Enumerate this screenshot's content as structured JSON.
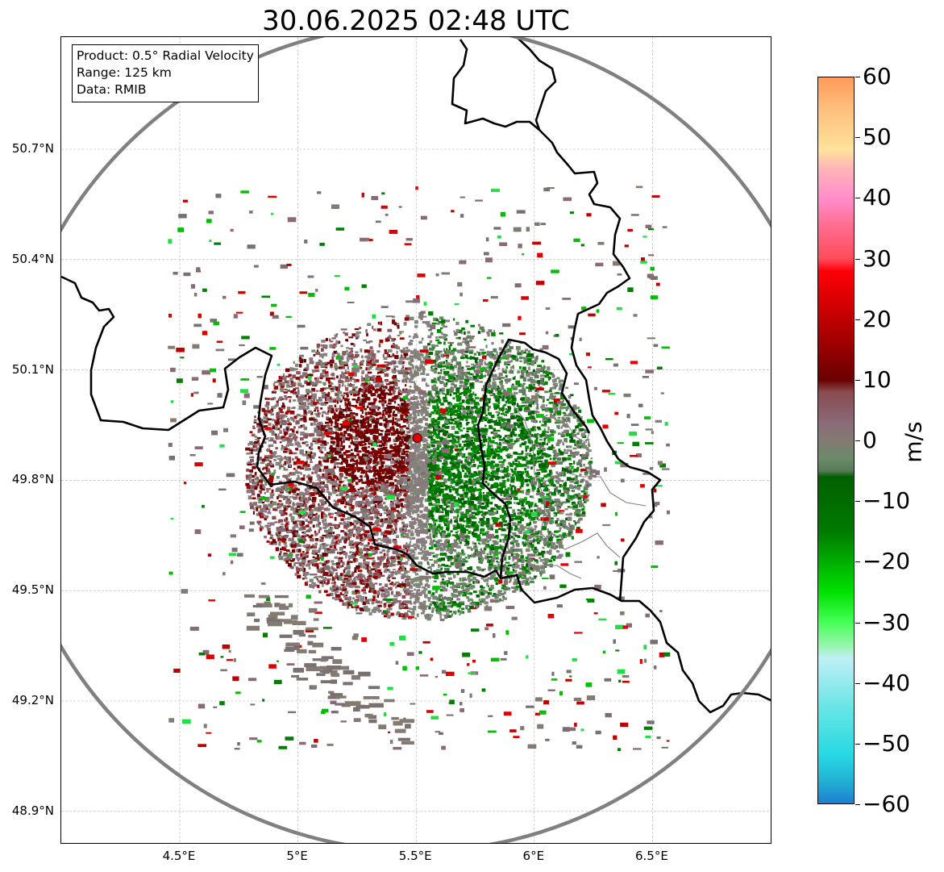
{
  "title": "30.06.2025 02:48 UTC",
  "info": {
    "product": "Product: 0.5° Radial Velocity",
    "range": "Range: 125 km",
    "data": "Data: RMIB"
  },
  "map": {
    "lon_range": [
      4.0,
      7.0
    ],
    "lat_range": [
      48.8,
      50.99
    ],
    "radar_site": {
      "lon": 5.505,
      "lat": 49.915
    },
    "range_km": 125,
    "lat_ticks": [
      {
        "value": 50.7,
        "label": "50.7°N"
      },
      {
        "value": 50.4,
        "label": "50.4°N"
      },
      {
        "value": 50.1,
        "label": "50.1°N"
      },
      {
        "value": 49.8,
        "label": "49.8°N"
      },
      {
        "value": 49.5,
        "label": "49.5°N"
      },
      {
        "value": 49.2,
        "label": "49.2°N"
      },
      {
        "value": 48.9,
        "label": "48.9°N"
      }
    ],
    "lon_ticks": [
      {
        "value": 4.5,
        "label": "4.5°E"
      },
      {
        "value": 5.0,
        "label": "5°E"
      },
      {
        "value": 5.5,
        "label": "5.5°E"
      },
      {
        "value": 6.0,
        "label": "6°E"
      },
      {
        "value": 6.5,
        "label": "6.5°E"
      }
    ],
    "colors": {
      "grid": "#b0b0b0",
      "range_ring": "#808080",
      "border": "#000000",
      "admin_border": "#808080",
      "site_marker": "#e00000"
    }
  },
  "colorbar": {
    "unit": "m/s",
    "min": -60,
    "max": 60,
    "ticks": [
      {
        "value": 60,
        "label": "60"
      },
      {
        "value": 50,
        "label": "50"
      },
      {
        "value": 40,
        "label": "40"
      },
      {
        "value": 30,
        "label": "30"
      },
      {
        "value": 20,
        "label": "20"
      },
      {
        "value": 10,
        "label": "10"
      },
      {
        "value": 0,
        "label": "0"
      },
      {
        "value": -10,
        "label": "−10"
      },
      {
        "value": -20,
        "label": "−20"
      },
      {
        "value": -30,
        "label": "−30"
      },
      {
        "value": -40,
        "label": "−40"
      },
      {
        "value": -50,
        "label": "−50"
      },
      {
        "value": -60,
        "label": "−60"
      }
    ],
    "stops": [
      {
        "value": 60,
        "color": "#ff9a5a"
      },
      {
        "value": 55,
        "color": "#ffbe7c"
      },
      {
        "value": 48,
        "color": "#ffe39c"
      },
      {
        "value": 45,
        "color": "#ffb6b6"
      },
      {
        "value": 40,
        "color": "#ff8ccc"
      },
      {
        "value": 35,
        "color": "#ff6a8a"
      },
      {
        "value": 30,
        "color": "#ff4a5a"
      },
      {
        "value": 28,
        "color": "#ff0008"
      },
      {
        "value": 20,
        "color": "#c00000"
      },
      {
        "value": 10,
        "color": "#6a0000"
      },
      {
        "value": 8,
        "color": "#8a4a50"
      },
      {
        "value": 3,
        "color": "#8a6a78"
      },
      {
        "value": 0,
        "color": "#837a72"
      },
      {
        "value": -3,
        "color": "#6a8a68"
      },
      {
        "value": -5,
        "color": "#5a7a5a"
      },
      {
        "value": -6,
        "color": "#006000"
      },
      {
        "value": -15,
        "color": "#007a00"
      },
      {
        "value": -25,
        "color": "#00e000"
      },
      {
        "value": -30,
        "color": "#44ff55"
      },
      {
        "value": -34,
        "color": "#9af5b0"
      },
      {
        "value": -36,
        "color": "#bff0f5"
      },
      {
        "value": -45,
        "color": "#60e4e4"
      },
      {
        "value": -52,
        "color": "#28d8e4"
      },
      {
        "value": -56,
        "color": "#22b4d4"
      },
      {
        "value": -60,
        "color": "#1e7fd0"
      }
    ]
  }
}
